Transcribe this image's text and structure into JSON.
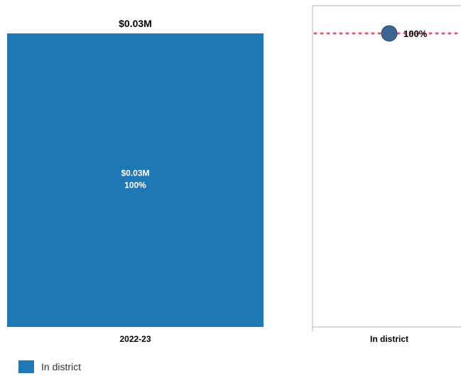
{
  "colors": {
    "bar": "#1f77b4",
    "axis": "#b3b3b3",
    "reference_line": "#e05a6b",
    "marker_fill": "#3a6690",
    "marker_stroke": "#2c4f70",
    "text": "#000000",
    "bar_label": "#ffffff"
  },
  "chart_data": [
    {
      "type": "bar",
      "categories": [
        "2022-23"
      ],
      "values": [
        0.03
      ],
      "value_label": "$0.03M",
      "inner_label_value": "$0.03M",
      "inner_label_pct": "100%",
      "series": [
        {
          "name": "In district",
          "values": [
            0.03
          ],
          "percent": [
            100
          ]
        }
      ]
    },
    {
      "type": "scatter",
      "categories": [
        "In district"
      ],
      "values": [
        100
      ],
      "point_label": "100%",
      "reference_line": 100,
      "ylim": [
        0,
        100
      ]
    }
  ],
  "legend": {
    "items": [
      {
        "label": "In district",
        "color": "#1f77b4"
      }
    ]
  }
}
